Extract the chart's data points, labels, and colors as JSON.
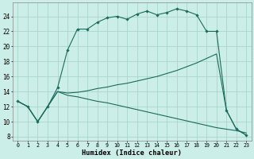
{
  "xlabel": "Humidex (Indice chaleur)",
  "bg_color": "#cceee8",
  "grid_color": "#aad4cc",
  "line_color": "#1a6b5a",
  "xlim": [
    -0.5,
    23.5
  ],
  "ylim": [
    7.5,
    25.8
  ],
  "yticks": [
    8,
    10,
    12,
    14,
    16,
    18,
    20,
    22,
    24
  ],
  "xticks": [
    0,
    1,
    2,
    3,
    4,
    5,
    6,
    7,
    8,
    9,
    10,
    11,
    12,
    13,
    14,
    15,
    16,
    17,
    18,
    19,
    20,
    21,
    22,
    23
  ],
  "main_x": [
    0,
    1,
    2,
    3,
    4,
    5,
    6,
    7,
    8,
    9,
    10,
    11,
    12,
    13,
    14,
    15,
    16,
    17,
    18,
    19,
    20,
    21,
    22,
    23
  ],
  "main_y": [
    12.7,
    12.0,
    10.0,
    12.0,
    14.5,
    19.5,
    22.3,
    22.3,
    23.2,
    23.8,
    24.0,
    23.6,
    24.3,
    24.7,
    24.2,
    24.5,
    25.0,
    24.7,
    24.2,
    22.0,
    22.0,
    11.5,
    9.0,
    8.2
  ],
  "line2_y": [
    12.7,
    12.0,
    10.0,
    12.0,
    14.0,
    13.8,
    13.9,
    14.1,
    14.4,
    14.6,
    14.9,
    15.1,
    15.4,
    15.7,
    16.0,
    16.4,
    16.8,
    17.3,
    17.8,
    18.4,
    19.0,
    11.5,
    9.0,
    8.2
  ],
  "line3_y": [
    12.7,
    12.0,
    10.0,
    12.0,
    14.0,
    13.5,
    13.3,
    13.0,
    12.7,
    12.5,
    12.2,
    11.9,
    11.6,
    11.3,
    11.0,
    10.7,
    10.4,
    10.1,
    9.8,
    9.5,
    9.2,
    9.0,
    8.8,
    8.5
  ]
}
